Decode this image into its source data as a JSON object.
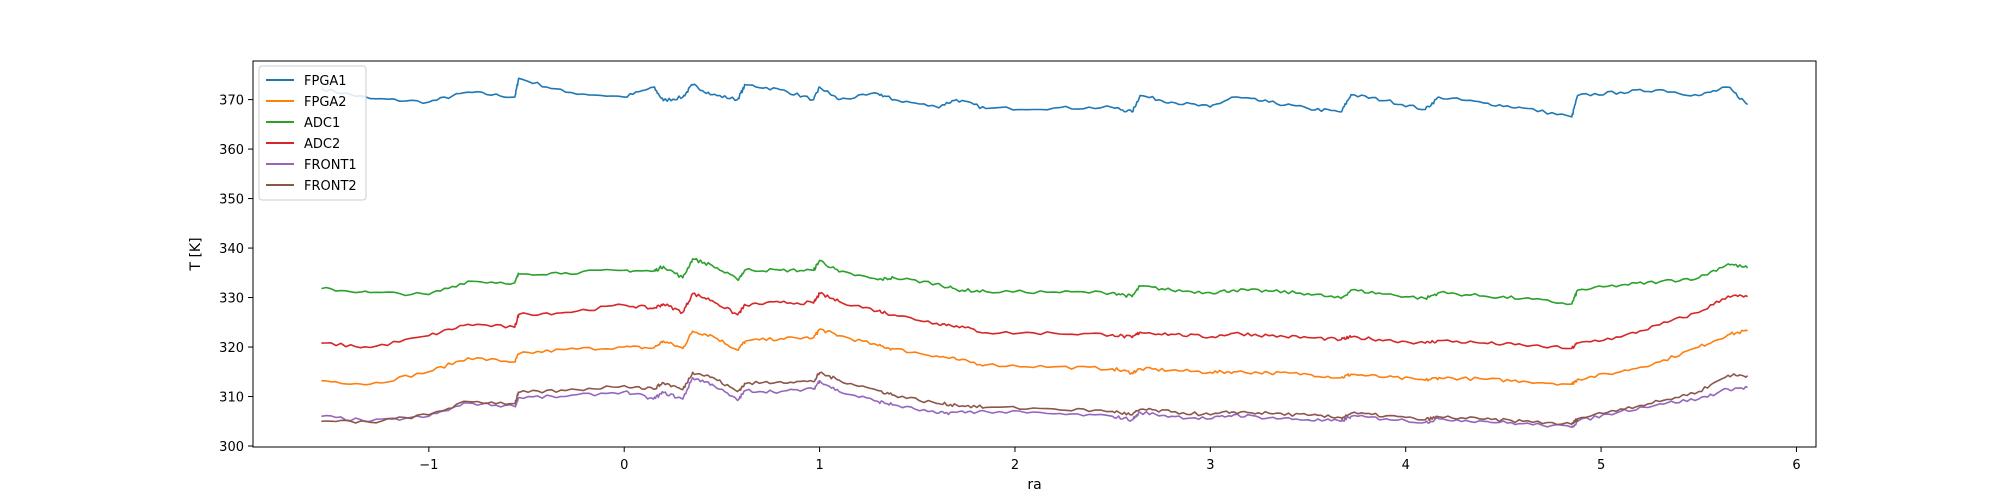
{
  "chart_data": {
    "type": "line",
    "title": "",
    "xlabel": "ra",
    "ylabel": "T [K]",
    "xlim": [
      -1.9,
      6.1
    ],
    "ylim": [
      299.8,
      377.8
    ],
    "xticks": [
      -1,
      0,
      1,
      2,
      3,
      4,
      5,
      6
    ],
    "xtick_labels": [
      "−1",
      "0",
      "1",
      "2",
      "3",
      "4",
      "5",
      "6"
    ],
    "yticks": [
      300,
      310,
      320,
      330,
      340,
      350,
      360,
      370
    ],
    "ytick_labels": [
      "300",
      "310",
      "320",
      "330",
      "340",
      "350",
      "360",
      "370"
    ],
    "grid": false,
    "legend_position": "top-left",
    "x": [
      -1.55,
      -1.3,
      -1.0,
      -0.8,
      -0.56,
      -0.54,
      -0.3,
      0.0,
      0.15,
      0.2,
      0.3,
      0.35,
      0.45,
      0.58,
      0.62,
      0.8,
      0.97,
      1.0,
      1.1,
      1.3,
      1.38,
      1.6,
      1.7,
      1.85,
      2.2,
      2.5,
      2.6,
      2.64,
      2.8,
      3.0,
      3.12,
      3.3,
      3.5,
      3.67,
      3.72,
      3.9,
      4.1,
      4.17,
      4.4,
      4.6,
      4.85,
      4.88,
      5.1,
      5.3,
      5.5,
      5.65,
      5.75
    ],
    "series": [
      {
        "name": "FPGA1",
        "color": "#1f77b4",
        "values": [
          372.2,
          370.2,
          369.5,
          371.5,
          370.5,
          374.3,
          371.5,
          370.5,
          372.5,
          369.8,
          370.5,
          373.0,
          371.0,
          370.0,
          373.0,
          372.0,
          370.0,
          372.5,
          370.0,
          371.2,
          370.0,
          368.5,
          370.0,
          368.2,
          368.3,
          368.4,
          367.5,
          370.8,
          369.5,
          368.5,
          370.5,
          369.5,
          368.2,
          367.5,
          371.0,
          369.8,
          368.0,
          370.5,
          369.3,
          368.3,
          366.5,
          370.8,
          371.5,
          372.0,
          370.8,
          372.5,
          369.0
        ]
      },
      {
        "name": "FPGA2",
        "color": "#ff7f0e",
        "values": [
          313.2,
          312.5,
          315.0,
          317.8,
          317.0,
          318.6,
          319.5,
          320.0,
          319.8,
          321.2,
          319.7,
          323.2,
          322.3,
          319.4,
          321.2,
          321.7,
          321.9,
          323.6,
          322.3,
          320.3,
          319.6,
          318.2,
          317.5,
          316.4,
          316.0,
          315.6,
          314.8,
          315.6,
          315.3,
          314.9,
          315.0,
          314.8,
          314.5,
          313.8,
          314.5,
          313.9,
          313.3,
          313.8,
          313.5,
          313.1,
          312.5,
          313.5,
          315.0,
          317.0,
          320.0,
          322.5,
          323.3
        ]
      },
      {
        "name": "ADC1",
        "color": "#2ca02c",
        "values": [
          331.8,
          331.0,
          330.6,
          333.3,
          333.0,
          334.8,
          335.0,
          335.5,
          335.3,
          336.3,
          334.0,
          337.8,
          336.5,
          333.6,
          335.6,
          335.5,
          335.5,
          337.5,
          335.2,
          333.6,
          334.0,
          332.8,
          331.6,
          331.2,
          331.1,
          331.0,
          330.2,
          332.3,
          331.5,
          331.0,
          331.5,
          331.3,
          330.8,
          329.8,
          331.5,
          330.7,
          329.8,
          331.0,
          330.3,
          329.8,
          328.7,
          331.5,
          332.5,
          333.2,
          334.0,
          336.8,
          336.0
        ]
      },
      {
        "name": "ADC2",
        "color": "#d62728",
        "values": [
          320.8,
          319.9,
          322.3,
          324.6,
          324.0,
          326.6,
          327.0,
          328.5,
          327.8,
          328.7,
          327.0,
          330.8,
          329.4,
          326.5,
          328.5,
          329.0,
          328.9,
          330.8,
          329.2,
          327.3,
          326.5,
          324.8,
          324.3,
          322.9,
          322.8,
          322.5,
          321.9,
          323.0,
          322.6,
          322.0,
          322.8,
          322.3,
          321.9,
          321.5,
          322.0,
          321.4,
          320.8,
          321.3,
          320.8,
          320.4,
          319.7,
          320.8,
          322.0,
          324.5,
          327.0,
          330.3,
          330.2
        ]
      },
      {
        "name": "FRONT1",
        "color": "#9467bd",
        "values": [
          306.0,
          305.0,
          306.0,
          308.7,
          308.0,
          309.8,
          310.0,
          311.0,
          309.5,
          310.8,
          309.5,
          313.8,
          312.5,
          309.2,
          311.2,
          311.0,
          311.5,
          313.2,
          311.0,
          309.0,
          308.3,
          306.6,
          306.8,
          307.0,
          306.5,
          306.0,
          305.3,
          306.8,
          306.0,
          305.5,
          306.3,
          305.7,
          305.3,
          305.0,
          306.0,
          305.5,
          304.8,
          305.5,
          305.0,
          304.5,
          303.8,
          305.0,
          307.0,
          308.5,
          309.5,
          311.5,
          311.8
        ]
      },
      {
        "name": "FRONT2",
        "color": "#8c564b",
        "values": [
          305.0,
          304.8,
          306.3,
          309.0,
          308.6,
          310.8,
          311.2,
          312.2,
          311.5,
          312.8,
          311.4,
          314.9,
          313.9,
          311.0,
          312.6,
          313.0,
          313.0,
          314.8,
          313.3,
          311.2,
          310.3,
          308.6,
          308.3,
          307.8,
          307.5,
          307.0,
          306.3,
          307.4,
          306.9,
          306.3,
          306.9,
          306.6,
          306.2,
          305.7,
          306.6,
          306.1,
          305.3,
          305.9,
          305.4,
          305.0,
          304.4,
          305.5,
          307.5,
          309.0,
          311.0,
          314.3,
          314.2
        ]
      }
    ]
  }
}
